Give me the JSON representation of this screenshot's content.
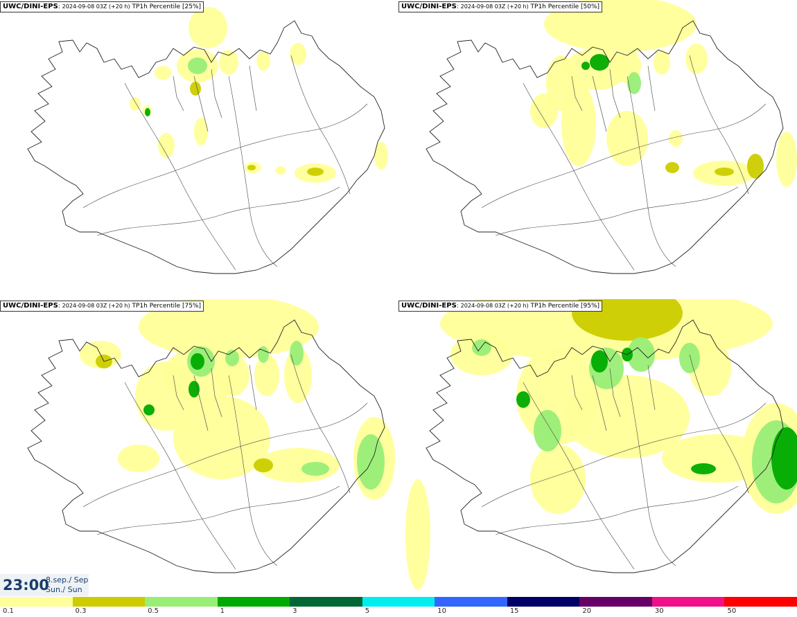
{
  "panels": [
    {
      "model": "UWC/DINI-EPS",
      "run": "2024-09-08 03Z (+20 h)",
      "field": "TP1h Percentile [25%]"
    },
    {
      "model": "UWC/DINI-EPS",
      "run": "2024-09-08 03Z (+20 h)",
      "field": "TP1h Percentile [50%]"
    },
    {
      "model": "UWC/DINI-EPS",
      "run": "2024-09-08 03Z (+20 h)",
      "field": "TP1h Percentile [75%]"
    },
    {
      "model": "UWC/DINI-EPS",
      "run": "2024-09-08 03Z (+20 h)",
      "field": "TP1h Percentile [95%]"
    }
  ],
  "valid_time": {
    "time": "23:00",
    "date_line1": "8.sep./ Sep",
    "date_line2": "Sun./ Sun"
  },
  "legend": {
    "ticks": [
      "0.1",
      "0.3",
      "0.5",
      "1",
      "3",
      "5",
      "10",
      "15",
      "20",
      "30",
      "50"
    ],
    "colors": [
      "#ffff99",
      "#cccc00",
      "#99ee77",
      "#00aa00",
      "#006633",
      "#00eeee",
      "#3366ff",
      "#000066",
      "#660066",
      "#ee1188",
      "#ff0000"
    ]
  }
}
